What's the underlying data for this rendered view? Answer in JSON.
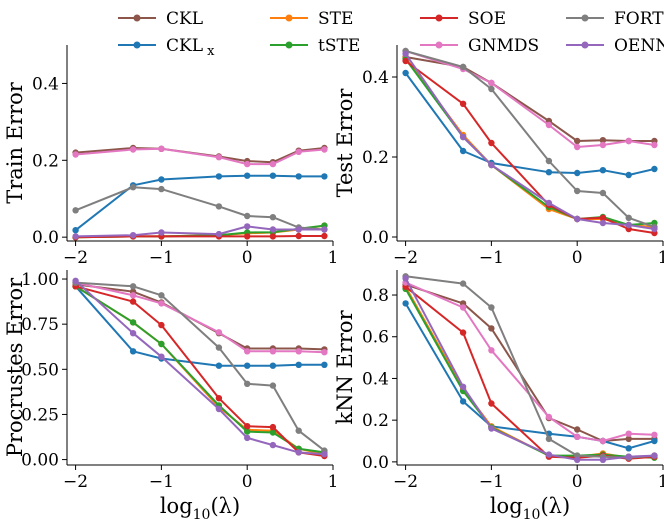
{
  "legend": [
    {
      "name": "CKL",
      "color": "#8c564b"
    },
    {
      "name": "CKL_x",
      "color": "#1f77b4"
    },
    {
      "name": "STE",
      "color": "#ff7f0e"
    },
    {
      "name": "tSTE",
      "color": "#2ca02c"
    },
    {
      "name": "SOE",
      "color": "#d62728"
    },
    {
      "name": "GNMDS",
      "color": "#e377c2"
    },
    {
      "name": "FORTE",
      "color": "#7f7f7f"
    },
    {
      "name": "OENN",
      "color": "#9467bd"
    }
  ],
  "chart_data": [
    {
      "type": "line",
      "id": "train",
      "ylabel": "Train Error",
      "xlabel": "",
      "xlim": [
        -2.1,
        1.0
      ],
      "ylim": [
        -0.01,
        0.5
      ],
      "xticks": [
        -2,
        -1,
        0,
        1
      ],
      "xtick_labels": [
        "−2",
        "−1",
        "0",
        "1"
      ],
      "yticks": [
        0.0,
        0.2,
        0.4
      ],
      "ytick_labels": [
        "0.0",
        "0.2",
        "0.4"
      ],
      "x": [
        -2.0,
        -1.33,
        -1.0,
        -0.33,
        0.0,
        0.3,
        0.6,
        0.9
      ],
      "series": [
        {
          "name": "CKL",
          "values": [
            0.22,
            0.232,
            0.23,
            0.21,
            0.198,
            0.195,
            0.225,
            0.232
          ]
        },
        {
          "name": "CKL_x",
          "values": [
            0.018,
            0.135,
            0.15,
            0.158,
            0.16,
            0.16,
            0.158,
            0.158
          ]
        },
        {
          "name": "STE",
          "values": [
            0.0,
            0.002,
            0.002,
            0.005,
            0.01,
            0.012,
            0.02,
            0.03
          ]
        },
        {
          "name": "tSTE",
          "values": [
            0.0,
            0.002,
            0.002,
            0.005,
            0.012,
            0.013,
            0.022,
            0.03
          ]
        },
        {
          "name": "SOE",
          "values": [
            0.0,
            0.002,
            0.002,
            0.002,
            0.002,
            0.002,
            0.003,
            0.003
          ]
        },
        {
          "name": "GNMDS",
          "values": [
            0.215,
            0.228,
            0.23,
            0.208,
            0.19,
            0.19,
            0.222,
            0.228
          ]
        },
        {
          "name": "FORTE",
          "values": [
            0.07,
            0.13,
            0.125,
            0.08,
            0.055,
            0.052,
            0.025,
            0.02
          ]
        },
        {
          "name": "OENN",
          "values": [
            0.002,
            0.005,
            0.012,
            0.008,
            0.028,
            0.02,
            0.02,
            0.02
          ]
        }
      ]
    },
    {
      "type": "line",
      "id": "test",
      "ylabel": "Test Error",
      "xlabel": "",
      "xlim": [
        -2.1,
        1.0
      ],
      "ylim": [
        -0.01,
        0.48
      ],
      "xticks": [
        -2,
        -1,
        0,
        1
      ],
      "xtick_labels": [
        "−2",
        "−1",
        "0",
        "1"
      ],
      "yticks": [
        0.0,
        0.2,
        0.4
      ],
      "ytick_labels": [
        "0.0",
        "0.2",
        "0.4"
      ],
      "x": [
        -2.0,
        -1.33,
        -1.0,
        -0.33,
        0.0,
        0.3,
        0.6,
        0.9
      ],
      "series": [
        {
          "name": "CKL",
          "values": [
            0.45,
            0.425,
            0.385,
            0.29,
            0.24,
            0.242,
            0.24,
            0.24
          ]
        },
        {
          "name": "CKL_x",
          "values": [
            0.41,
            0.215,
            0.185,
            0.162,
            0.16,
            0.167,
            0.155,
            0.17
          ]
        },
        {
          "name": "STE",
          "values": [
            0.448,
            0.255,
            0.18,
            0.07,
            0.045,
            0.045,
            0.03,
            0.025
          ]
        },
        {
          "name": "tSTE",
          "values": [
            0.445,
            0.25,
            0.18,
            0.075,
            0.045,
            0.05,
            0.03,
            0.035
          ]
        },
        {
          "name": "SOE",
          "values": [
            0.44,
            0.333,
            0.235,
            0.08,
            0.045,
            0.048,
            0.02,
            0.01
          ]
        },
        {
          "name": "GNMDS",
          "values": [
            0.465,
            0.42,
            0.385,
            0.28,
            0.225,
            0.23,
            0.24,
            0.23
          ]
        },
        {
          "name": "FORTE",
          "values": [
            0.465,
            0.425,
            0.37,
            0.19,
            0.115,
            0.11,
            0.048,
            0.025
          ]
        },
        {
          "name": "OENN",
          "values": [
            0.458,
            0.25,
            0.18,
            0.085,
            0.045,
            0.035,
            0.03,
            0.02
          ]
        }
      ]
    },
    {
      "type": "line",
      "id": "procrustes",
      "ylabel": "Procrustes Error",
      "xlabel": "log10(λ)",
      "xlim": [
        -2.1,
        1.0
      ],
      "ylim": [
        -0.03,
        1.05
      ],
      "xticks": [
        -2,
        -1,
        0,
        1
      ],
      "xtick_labels": [
        "−2",
        "−1",
        "0",
        "1"
      ],
      "yticks": [
        0.0,
        0.25,
        0.5,
        0.75,
        1.0
      ],
      "ytick_labels": [
        "0.00",
        "0.25",
        "0.50",
        "0.75",
        "1.00"
      ],
      "x": [
        -2.0,
        -1.33,
        -1.0,
        -0.33,
        0.0,
        0.3,
        0.6,
        0.9
      ],
      "series": [
        {
          "name": "CKL",
          "values": [
            0.97,
            0.93,
            0.87,
            0.7,
            0.615,
            0.615,
            0.615,
            0.61
          ]
        },
        {
          "name": "CKL_x",
          "values": [
            0.96,
            0.6,
            0.56,
            0.52,
            0.52,
            0.52,
            0.525,
            0.525
          ]
        },
        {
          "name": "STE",
          "values": [
            0.96,
            0.76,
            0.64,
            0.29,
            0.165,
            0.16,
            0.06,
            0.03
          ]
        },
        {
          "name": "tSTE",
          "values": [
            0.96,
            0.76,
            0.64,
            0.3,
            0.155,
            0.15,
            0.06,
            0.04
          ]
        },
        {
          "name": "SOE",
          "values": [
            0.96,
            0.875,
            0.745,
            0.34,
            0.185,
            0.18,
            0.04,
            0.02
          ]
        },
        {
          "name": "GNMDS",
          "values": [
            0.98,
            0.91,
            0.865,
            0.705,
            0.6,
            0.6,
            0.6,
            0.595
          ]
        },
        {
          "name": "FORTE",
          "values": [
            0.98,
            0.96,
            0.91,
            0.62,
            0.42,
            0.41,
            0.16,
            0.05
          ]
        },
        {
          "name": "OENN",
          "values": [
            0.99,
            0.7,
            0.57,
            0.28,
            0.12,
            0.08,
            0.04,
            0.03
          ]
        }
      ]
    },
    {
      "type": "line",
      "id": "knn",
      "ylabel": "kNN Error",
      "xlabel": "log10(λ)",
      "xlim": [
        -2.1,
        1.0
      ],
      "ylim": [
        -0.015,
        0.92
      ],
      "xticks": [
        -2,
        -1,
        0,
        1
      ],
      "xtick_labels": [
        "−2",
        "−1",
        "0",
        "1"
      ],
      "yticks": [
        0.0,
        0.2,
        0.4,
        0.6,
        0.8
      ],
      "ytick_labels": [
        "0.0",
        "0.2",
        "0.4",
        "0.6",
        "0.8"
      ],
      "x": [
        -2.0,
        -1.33,
        -1.0,
        -0.33,
        0.0,
        0.3,
        0.6,
        0.9
      ],
      "series": [
        {
          "name": "CKL",
          "values": [
            0.85,
            0.76,
            0.64,
            0.21,
            0.155,
            0.1,
            0.11,
            0.11
          ]
        },
        {
          "name": "CKL_x",
          "values": [
            0.76,
            0.29,
            0.17,
            0.135,
            0.12,
            0.1,
            0.065,
            0.1
          ]
        },
        {
          "name": "STE",
          "values": [
            0.84,
            0.35,
            0.17,
            0.03,
            0.025,
            0.04,
            0.02,
            0.03
          ]
        },
        {
          "name": "tSTE",
          "values": [
            0.83,
            0.34,
            0.165,
            0.03,
            0.03,
            0.035,
            0.025,
            0.02
          ]
        },
        {
          "name": "SOE",
          "values": [
            0.84,
            0.62,
            0.28,
            0.025,
            0.02,
            0.03,
            0.015,
            0.025
          ]
        },
        {
          "name": "GNMDS",
          "values": [
            0.86,
            0.74,
            0.535,
            0.215,
            0.12,
            0.1,
            0.135,
            0.13
          ]
        },
        {
          "name": "FORTE",
          "values": [
            0.89,
            0.855,
            0.74,
            0.11,
            0.03,
            0.025,
            0.02,
            0.03
          ]
        },
        {
          "name": "OENN",
          "values": [
            0.88,
            0.36,
            0.16,
            0.035,
            0.01,
            0.01,
            0.025,
            0.03
          ]
        }
      ]
    }
  ]
}
